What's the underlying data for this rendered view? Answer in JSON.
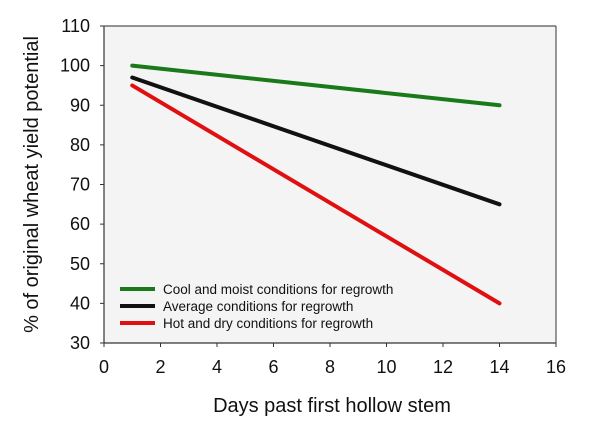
{
  "chart_data": {
    "type": "line",
    "title": "",
    "xlabel": "Days past first hollow stem",
    "ylabel": "% of original wheat yield potential",
    "xlim": [
      0,
      16
    ],
    "ylim": [
      30,
      110
    ],
    "xticks": [
      0,
      2,
      4,
      6,
      8,
      10,
      12,
      14,
      16
    ],
    "yticks": [
      30,
      40,
      50,
      60,
      70,
      80,
      90,
      100,
      110
    ],
    "grid": false,
    "legend_position": "bottom-left",
    "plot_background": "#f4f4f4",
    "series": [
      {
        "name": "Cool and moist conditions for regrowth",
        "color": "#1a7a1a",
        "x": [
          1,
          14
        ],
        "y": [
          100,
          90
        ]
      },
      {
        "name": "Average conditions for regrowth",
        "color": "#111111",
        "x": [
          1,
          14
        ],
        "y": [
          97,
          65
        ]
      },
      {
        "name": "Hot and dry conditions for regrowth",
        "color": "#e01010",
        "x": [
          1,
          14
        ],
        "y": [
          95,
          40
        ]
      }
    ]
  }
}
